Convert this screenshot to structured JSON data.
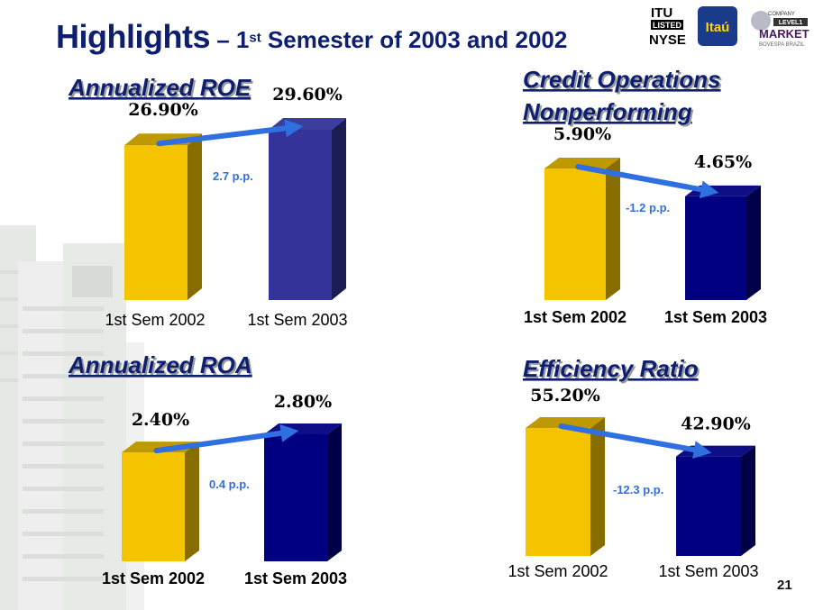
{
  "header": {
    "title_main": "Highlights",
    "title_rest_prefix": " – 1",
    "title_rest_sup": "st",
    "title_rest_suffix": " Semester of 2003 and 2002"
  },
  "logos": {
    "itu": "ITU",
    "listed": "LISTED",
    "nyse": "NYSE",
    "itau": "Itaú",
    "company": "COMPANY",
    "level1": "LEVEL1",
    "market": "MARKET",
    "bovespa": "BOVESPA BRAZIL"
  },
  "page_number": "21",
  "colors": {
    "title_blue": "#0d1f6e",
    "bar_2002": "#f5c400",
    "bar_2003_roe": "#333399",
    "bar_2003": "#000080",
    "arrow": "#2f6fe0"
  },
  "chart_data": [
    {
      "id": "roe",
      "type": "bar",
      "title": "Annualized ROE",
      "categories": [
        "1st Sem 2002",
        "1st Sem 2003"
      ],
      "values": [
        26.9,
        29.6
      ],
      "value_labels": [
        "26.90%",
        "29.60%"
      ],
      "delta_label": "2.7 p.p."
    },
    {
      "id": "npl",
      "type": "bar",
      "title": [
        "Credit Operations",
        "Nonperforming"
      ],
      "categories": [
        "1st Sem 2002",
        "1st Sem 2003"
      ],
      "values": [
        5.9,
        4.65
      ],
      "value_labels": [
        "5.90%",
        "4.65%"
      ],
      "delta_label": "-1.2 p.p."
    },
    {
      "id": "roa",
      "type": "bar",
      "title": "Annualized ROA",
      "categories": [
        "1st Sem 2002",
        "1st Sem 2003"
      ],
      "values": [
        2.4,
        2.8
      ],
      "value_labels": [
        "2.40%",
        "2.80%"
      ],
      "delta_label": "0.4 p.p."
    },
    {
      "id": "eff",
      "type": "bar",
      "title": "Efficiency Ratio",
      "categories": [
        "1st Sem 2002",
        "1st Sem 2003"
      ],
      "values": [
        55.2,
        42.9
      ],
      "value_labels": [
        "55.20%",
        "42.90%"
      ],
      "delta_label": "-12.3 p.p."
    }
  ]
}
